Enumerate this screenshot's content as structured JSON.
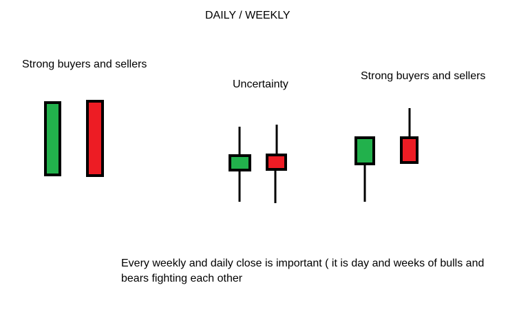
{
  "title": "DAILY / WEEKLY",
  "colors": {
    "bullish": "#22b14c",
    "bearish": "#ed1c24",
    "outline": "#000000"
  },
  "groups": [
    {
      "label": "Strong buyers and sellers",
      "candles": [
        {
          "direction": "bullish",
          "description": "large body, no wicks"
        },
        {
          "direction": "bearish",
          "description": "large body, no wicks"
        }
      ]
    },
    {
      "label": "Uncertainty",
      "candles": [
        {
          "direction": "bullish",
          "description": "small body, long upper and lower wicks"
        },
        {
          "direction": "bearish",
          "description": "small body, long upper and lower wicks"
        }
      ]
    },
    {
      "label": "Strong buyers and sellers",
      "candles": [
        {
          "direction": "bullish",
          "description": "medium body, long lower wick"
        },
        {
          "direction": "bearish",
          "description": "medium body, long upper wick"
        }
      ]
    }
  ],
  "note": "Every weekly and daily close is important ( it is day and weeks of bulls and bears fighting each other"
}
